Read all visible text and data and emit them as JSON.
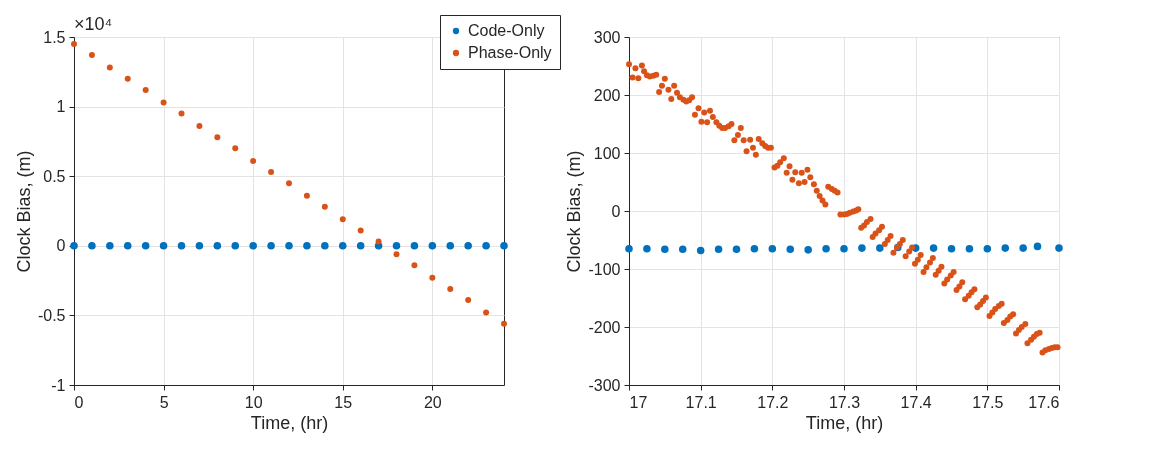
{
  "chart_data": [
    {
      "type": "scatter",
      "xlabel": "Time, (hr)",
      "ylabel": "Clock Bias, (m)",
      "xlim": [
        0,
        24
      ],
      "ylim": [
        -1,
        1.5
      ],
      "xticks": [
        0,
        5,
        10,
        15,
        20
      ],
      "yticks": [
        -1,
        -0.5,
        0,
        0.5,
        1,
        1.5
      ],
      "grid": true,
      "marker": "circle",
      "legend": "top right",
      "annotations": [
        "×10⁴"
      ],
      "x": [
        0,
        1,
        2,
        3,
        4,
        5,
        6,
        7,
        8,
        9,
        10,
        11,
        12,
        13,
        14,
        15,
        16,
        17,
        18,
        19,
        20,
        21,
        22,
        23,
        24
      ],
      "series": [
        {
          "name": "Code-Only",
          "color": "#0072bd",
          "values": [
            0,
            0,
            0,
            0,
            0,
            0,
            0,
            0,
            0,
            0,
            0,
            0,
            0,
            0,
            0,
            0,
            0,
            0,
            0,
            0,
            0,
            0,
            0,
            0,
            0
          ]
        },
        {
          "name": "Phase-Only",
          "color": "#d95319",
          "values": [
            1.45,
            1.37,
            1.28,
            1.2,
            1.12,
            1.03,
            0.95,
            0.86,
            0.78,
            0.7,
            0.61,
            0.53,
            0.45,
            0.36,
            0.28,
            0.19,
            0.11,
            0.03,
            -0.06,
            -0.14,
            -0.23,
            -0.31,
            -0.39,
            -0.48,
            -0.56
          ]
        }
      ]
    },
    {
      "type": "scatter",
      "xlabel": "Time, (hr)",
      "ylabel": "Clock Bias, (m)",
      "xlim": [
        17,
        17.6
      ],
      "ylim": [
        -300,
        300
      ],
      "xticks": [
        17,
        17.1,
        17.2,
        17.3,
        17.4,
        17.5,
        17.6
      ],
      "yticks": [
        -300,
        -200,
        -100,
        0,
        100,
        200,
        300
      ],
      "grid": true,
      "marker": "circle",
      "series": [
        {
          "color": "#0072bd",
          "x": [
            17,
            17.025,
            17.05,
            17.075,
            17.1,
            17.125,
            17.15,
            17.175,
            17.2,
            17.225,
            17.25,
            17.275,
            17.3,
            17.325,
            17.35,
            17.375,
            17.4,
            17.425,
            17.45,
            17.475,
            17.5,
            17.525,
            17.55,
            17.57,
            17.6
          ],
          "values": [
            -65,
            -65,
            -66,
            -66,
            -68,
            -66,
            -66,
            -65,
            -65,
            -66,
            -67,
            -65,
            -65,
            -64,
            -64,
            -63,
            -64,
            -64,
            -65,
            -65,
            -65,
            -64,
            -64,
            -61,
            -64
          ]
        },
        {
          "color": "#d95319",
          "x": [
            17,
            17.005,
            17.009,
            17.013,
            17.018,
            17.021,
            17.025,
            17.029,
            17.034,
            17.038,
            17.042,
            17.046,
            17.05,
            17.055,
            17.059,
            17.063,
            17.067,
            17.071,
            17.076,
            17.08,
            17.084,
            17.088,
            17.092,
            17.097,
            17.101,
            17.105,
            17.109,
            17.113,
            17.117,
            17.122,
            17.126,
            17.13,
            17.134,
            17.139,
            17.143,
            17.147,
            17.152,
            17.156,
            17.16,
            17.164,
            17.169,
            17.173,
            17.177,
            17.181,
            17.186,
            17.19,
            17.194,
            17.198,
            17.203,
            17.207,
            17.211,
            17.216,
            17.22,
            17.224,
            17.228,
            17.232,
            17.237,
            17.241,
            17.245,
            17.249,
            17.253,
            17.258,
            17.262,
            17.266,
            17.27,
            17.274,
            17.278,
            17.283,
            17.287,
            17.291,
            17.295,
            17.3,
            17.304,
            17.308,
            17.313,
            17.317,
            17.32,
            17.324,
            17.328,
            17.332,
            17.337,
            17.34,
            17.344,
            17.349,
            17.353,
            17.357,
            17.361,
            17.365,
            17.369,
            17.374,
            17.378,
            17.382,
            17.386,
            17.391,
            17.395,
            17.399,
            17.403,
            17.407,
            17.411,
            17.415,
            17.42,
            17.424,
            17.428,
            17.432,
            17.436,
            17.44,
            17.444,
            17.449,
            17.453,
            17.457,
            17.461,
            17.465,
            17.469,
            17.474,
            17.478,
            17.482,
            17.486,
            17.49,
            17.494,
            17.498,
            17.503,
            17.507,
            17.511,
            17.516,
            17.52,
            17.523,
            17.528,
            17.532,
            17.536,
            17.54,
            17.544,
            17.548,
            17.553,
            17.556,
            17.561,
            17.565,
            17.569,
            17.573,
            17.577,
            17.581,
            17.586,
            17.59,
            17.594,
            17.598
          ],
          "values": [
            253,
            230,
            246,
            229,
            251,
            241,
            234,
            232,
            233,
            235,
            205,
            216,
            228,
            209,
            193,
            216,
            204,
            196,
            192,
            189,
            191,
            196,
            166,
            177,
            154,
            170,
            153,
            173,
            162,
            153,
            147,
            143,
            143,
            146,
            150,
            122,
            131,
            143,
            122,
            103,
            123,
            109,
            97,
            124,
            117,
            112,
            109,
            109,
            75,
            78,
            84,
            91,
            66,
            77,
            54,
            67,
            48,
            66,
            50,
            71,
            58,
            46,
            35,
            26,
            18,
            11,
            42,
            38,
            35,
            32,
            -6,
            -6,
            -5,
            -3,
            -1,
            1,
            3,
            -29,
            -25,
            -19,
            -14,
            -45,
            -39,
            -33,
            -27,
            -57,
            -50,
            -43,
            -72,
            -63,
            -57,
            -50,
            -78,
            -70,
            -63,
            -91,
            -84,
            -76,
            -105,
            -97,
            -89,
            -81,
            -110,
            -103,
            -96,
            -125,
            -118,
            -111,
            -105,
            -136,
            -130,
            -123,
            -152,
            -146,
            -140,
            -135,
            -166,
            -161,
            -155,
            -149,
            -181,
            -175,
            -169,
            -164,
            -160,
            -193,
            -188,
            -182,
            -178,
            -211,
            -205,
            -200,
            -195,
            -228,
            -222,
            -217,
            -212,
            -210,
            -244,
            -240,
            -238,
            -236,
            -235,
            -235
          ]
        }
      ]
    }
  ]
}
